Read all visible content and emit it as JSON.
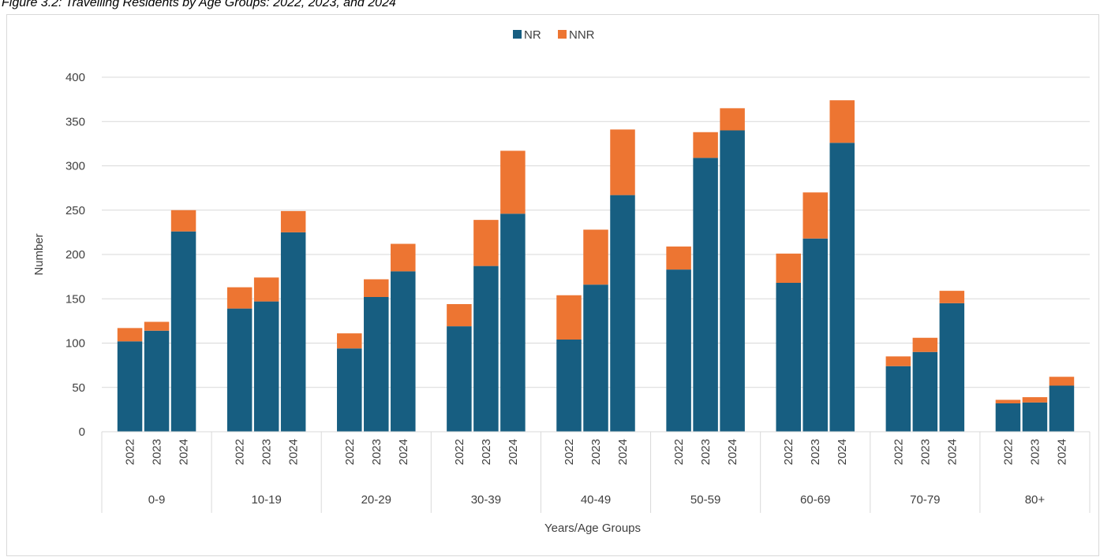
{
  "figure_title": "Figure 3.2: Travelling Residents by Age Groups: 2022, 2023, and 2024",
  "colors": {
    "NR": "#175E81",
    "NNR": "#ED7532",
    "grid": "#d9d9d9",
    "text": "#404040"
  },
  "chart_data": {
    "type": "bar",
    "stacked": true,
    "title": "",
    "xlabel": "Years/Age Groups",
    "ylabel": "Number",
    "ylim": [
      0,
      400
    ],
    "yticks": [
      0,
      50,
      100,
      150,
      200,
      250,
      300,
      350,
      400
    ],
    "grid": true,
    "legend_position": "top-center",
    "groups": [
      "0-9",
      "10-19",
      "20-29",
      "30-39",
      "40-49",
      "50-59",
      "60-69",
      "70-79",
      "80+"
    ],
    "years": [
      "2022",
      "2023",
      "2024"
    ],
    "series": [
      {
        "name": "NR",
        "values": [
          [
            102,
            114,
            226
          ],
          [
            139,
            147,
            225
          ],
          [
            94,
            152,
            181
          ],
          [
            119,
            187,
            246
          ],
          [
            104,
            166,
            267
          ],
          [
            183,
            309,
            340
          ],
          [
            168,
            218,
            326
          ],
          [
            74,
            90,
            145
          ],
          [
            32,
            33,
            52
          ]
        ]
      },
      {
        "name": "NNR",
        "values": [
          [
            15,
            10,
            24
          ],
          [
            24,
            27,
            24
          ],
          [
            17,
            20,
            31
          ],
          [
            25,
            52,
            71
          ],
          [
            50,
            62,
            74
          ],
          [
            26,
            29,
            25
          ],
          [
            33,
            52,
            48
          ],
          [
            11,
            16,
            14
          ],
          [
            4,
            6,
            10
          ]
        ]
      }
    ]
  }
}
